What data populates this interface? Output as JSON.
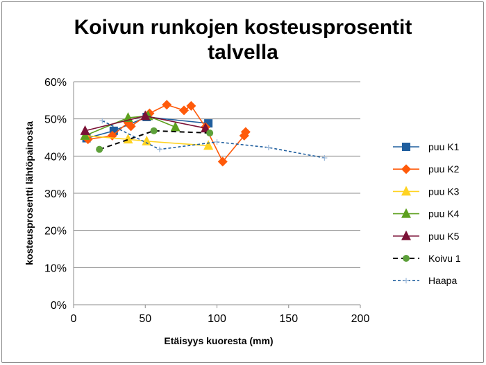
{
  "chart_data": {
    "type": "line",
    "title_lines": [
      "Koivun runkojen kosteusprosentit",
      "talvella"
    ],
    "xlabel": "Etäisyys kuoresta (mm)",
    "ylabel": "kosteusprosentti lähtöpainosta",
    "xlim": [
      0,
      200
    ],
    "ylim": [
      0,
      60
    ],
    "x_ticks": [
      0,
      50,
      100,
      150,
      200
    ],
    "y_ticks": [
      0,
      10,
      20,
      30,
      40,
      50,
      60
    ],
    "x_tick_labels": [
      "0",
      "50",
      "100",
      "150",
      "200"
    ],
    "y_tick_labels": [
      "0%",
      "10%",
      "20%",
      "30%",
      "40%",
      "50%",
      "60%"
    ],
    "grid": "horizontal",
    "legend_position": "right",
    "series": [
      {
        "name": "puu K1",
        "color": "#1f5e9e",
        "marker": "square",
        "dash": "solid",
        "x": [
          9,
          28,
          51,
          94
        ],
        "y": [
          44.8,
          46.8,
          50.5,
          48.8
        ]
      },
      {
        "name": "puu K2",
        "color": "#ff5a0a",
        "marker": "diamond",
        "dash": "solid",
        "x": [
          10,
          27,
          38,
          40,
          53,
          65,
          77,
          82,
          92,
          104,
          119,
          120
        ],
        "y": [
          44.5,
          45.5,
          49.0,
          48.0,
          51.5,
          53.8,
          52.3,
          53.5,
          47.8,
          38.5,
          45.5,
          46.5
        ]
      },
      {
        "name": "puu K3",
        "color": "#ffd322",
        "marker": "triangle",
        "dash": "solid",
        "x": [
          8,
          38,
          51,
          94
        ],
        "y": [
          45.5,
          44.5,
          44.0,
          42.8
        ]
      },
      {
        "name": "puu K4",
        "color": "#5da01e",
        "marker": "triangle",
        "dash": "solid",
        "x": [
          8,
          38,
          52,
          71
        ],
        "y": [
          45.5,
          50.3,
          50.8,
          47.8
        ]
      },
      {
        "name": "puu K5",
        "color": "#7b1136",
        "marker": "triangle",
        "dash": "solid",
        "x": [
          8,
          50,
          92
        ],
        "y": [
          46.8,
          50.8,
          47.5
        ]
      },
      {
        "name": "Koivu 1",
        "color": "#000000",
        "marker_color": "#5da03a",
        "marker": "circle",
        "dash": "dashed",
        "x": [
          18,
          56,
          95
        ],
        "y": [
          41.8,
          46.8,
          46.2
        ]
      },
      {
        "name": "Haapa",
        "color": "#1f5e9e",
        "marker": "plus",
        "dash": "dotted",
        "x": [
          20,
          60,
          100,
          136,
          175
        ],
        "y": [
          49.5,
          41.8,
          43.8,
          42.3,
          39.5
        ]
      }
    ]
  }
}
